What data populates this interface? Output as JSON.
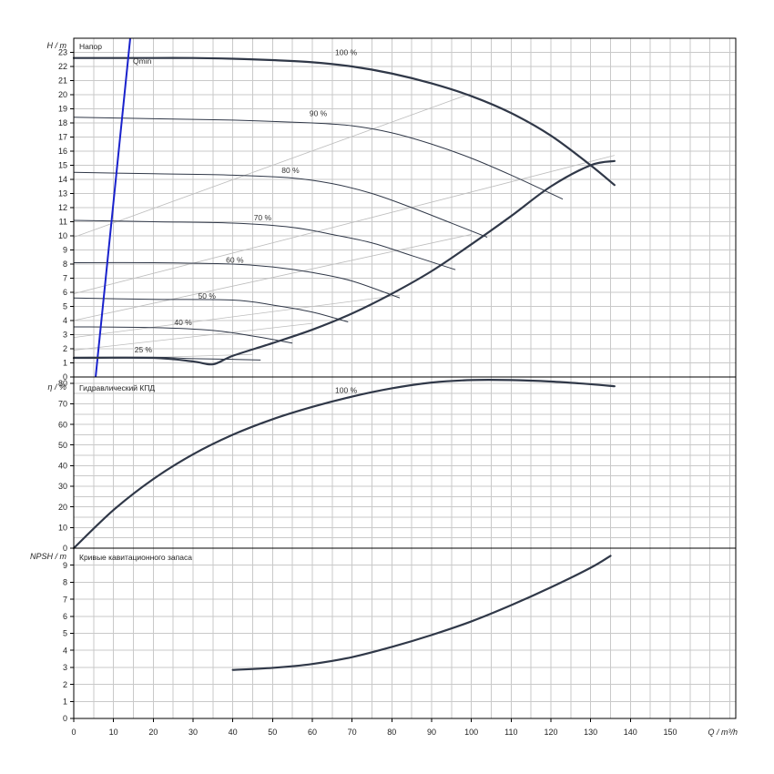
{
  "chart_data": [
    {
      "type": "line",
      "panel": "head",
      "title": "Напор",
      "ylabel": "H / m",
      "ylim": [
        0,
        24
      ],
      "yticks": [
        0,
        1,
        2,
        3,
        4,
        5,
        6,
        7,
        8,
        9,
        10,
        11,
        12,
        13,
        14,
        15,
        16,
        17,
        18,
        19,
        20,
        21,
        22,
        23
      ],
      "grid": true,
      "series": [
        {
          "name": "100 %",
          "style": "bold",
          "x": [
            0,
            10,
            20,
            30,
            40,
            50,
            60,
            70,
            80,
            90,
            100,
            110,
            120,
            130,
            136
          ],
          "y": [
            22.6,
            22.6,
            22.6,
            22.6,
            22.55,
            22.45,
            22.3,
            22.0,
            21.5,
            20.8,
            19.9,
            18.7,
            17.1,
            15.0,
            13.6
          ]
        },
        {
          "name": "90 %",
          "style": "thin",
          "x": [
            0,
            20,
            40,
            60,
            70,
            80,
            90,
            100,
            110,
            123
          ],
          "y": [
            18.4,
            18.3,
            18.2,
            18.0,
            17.8,
            17.3,
            16.5,
            15.5,
            14.3,
            12.6
          ]
        },
        {
          "name": "80 %",
          "style": "thin",
          "x": [
            0,
            20,
            40,
            55,
            65,
            75,
            85,
            95,
            104
          ],
          "y": [
            14.5,
            14.4,
            14.3,
            14.1,
            13.7,
            13.0,
            12.0,
            10.9,
            9.9
          ]
        },
        {
          "name": "70 %",
          "style": "thin",
          "x": [
            0,
            20,
            40,
            55,
            65,
            75,
            85,
            96
          ],
          "y": [
            11.1,
            11.0,
            10.9,
            10.6,
            10.1,
            9.5,
            8.6,
            7.6
          ]
        },
        {
          "name": "60 %",
          "style": "thin",
          "x": [
            0,
            20,
            40,
            50,
            60,
            70,
            82
          ],
          "y": [
            8.1,
            8.1,
            8.0,
            7.8,
            7.4,
            6.8,
            5.6
          ]
        },
        {
          "name": "50 %",
          "style": "thin",
          "x": [
            0,
            20,
            40,
            50,
            60,
            69
          ],
          "y": [
            5.6,
            5.5,
            5.45,
            5.1,
            4.6,
            3.9
          ]
        },
        {
          "name": "40 %",
          "style": "thin",
          "x": [
            0,
            20,
            35,
            45,
            55
          ],
          "y": [
            3.55,
            3.5,
            3.3,
            2.9,
            2.4
          ]
        },
        {
          "name": "25 %",
          "style": "thin",
          "x": [
            0,
            20,
            30,
            40,
            47
          ],
          "y": [
            1.4,
            1.4,
            1.3,
            1.25,
            1.2
          ]
        },
        {
          "name": "Qmin",
          "style": "qmin",
          "x": [
            5.5,
            14.2
          ],
          "y": [
            0,
            24
          ]
        }
      ],
      "min_curve": {
        "x": [
          0,
          20,
          30,
          35,
          40,
          50,
          60,
          70,
          80,
          90,
          100,
          110,
          120,
          130,
          136
        ],
        "y": [
          1.35,
          1.35,
          1.1,
          0.9,
          1.5,
          2.4,
          3.35,
          4.5,
          5.9,
          7.5,
          9.4,
          11.4,
          13.5,
          15.0,
          15.3
        ]
      },
      "iso_lines": [
        {
          "x": [
            0,
            100
          ],
          "y": [
            9.9,
            20.1
          ]
        },
        {
          "x": [
            0,
            136
          ],
          "y": [
            5.9,
            15.7
          ]
        },
        {
          "x": [
            0,
            100
          ],
          "y": [
            4.0,
            10.1
          ]
        },
        {
          "x": [
            0,
            82
          ],
          "y": [
            2.8,
            5.8
          ]
        },
        {
          "x": [
            0,
            60
          ],
          "y": [
            1.9,
            3.8
          ]
        },
        {
          "x": [
            10,
            45
          ],
          "y": [
            1.3,
            1.6
          ]
        }
      ]
    },
    {
      "type": "line",
      "panel": "efficiency",
      "title": "Гидравлический КПД",
      "ylabel": "η / %",
      "ylim": [
        0,
        83
      ],
      "yticks": [
        0,
        10,
        20,
        30,
        40,
        50,
        60,
        70,
        80
      ],
      "grid": true,
      "series": [
        {
          "name": "100 %",
          "style": "bold",
          "x": [
            0,
            10,
            20,
            30,
            40,
            50,
            60,
            70,
            80,
            90,
            100,
            110,
            120,
            130,
            136
          ],
          "y": [
            0,
            18.5,
            33.5,
            45.5,
            55,
            62.5,
            68.5,
            73.5,
            77.5,
            80.3,
            81.5,
            81.5,
            80.8,
            79.5,
            78.5
          ]
        }
      ]
    },
    {
      "type": "line",
      "panel": "npsh",
      "title": "Кривые кавитационного запаса",
      "ylabel": "NPSH / m",
      "ylim": [
        0,
        10
      ],
      "yticks": [
        0,
        1,
        2,
        3,
        4,
        5,
        6,
        7,
        8,
        9
      ],
      "grid": true,
      "series": [
        {
          "name": "",
          "style": "bold",
          "x": [
            40,
            50,
            60,
            70,
            80,
            90,
            100,
            110,
            120,
            130,
            135
          ],
          "y": [
            2.85,
            2.97,
            3.2,
            3.6,
            4.2,
            4.9,
            5.7,
            6.65,
            7.7,
            8.85,
            9.55
          ]
        }
      ]
    }
  ],
  "xaxis": {
    "label": "Q / m³/h",
    "xlim": [
      0,
      166.5
    ],
    "ticks": [
      0,
      10,
      20,
      30,
      40,
      50,
      60,
      70,
      80,
      90,
      100,
      110,
      120,
      130,
      140,
      150
    ]
  },
  "labels": {
    "qmin": "Qmin",
    "head_levels": [
      {
        "text": "100 %",
        "q": 68.5,
        "h": 22.6
      },
      {
        "text": "90 %",
        "q": 61.5,
        "h": 18.3
      },
      {
        "text": "80 %",
        "q": 54.5,
        "h": 14.25
      },
      {
        "text": "70 %",
        "q": 47.5,
        "h": 10.9
      },
      {
        "text": "60 %",
        "q": 40.5,
        "h": 7.9
      },
      {
        "text": "50 %",
        "q": 33.5,
        "h": 5.35
      },
      {
        "text": "40 %",
        "q": 27.5,
        "h": 3.5
      },
      {
        "text": "25 %",
        "q": 17.5,
        "h": 1.55
      }
    ],
    "eff_level": {
      "text": "100 %",
      "q": 68.5,
      "eta": 74
    }
  },
  "colors": {
    "curve": "#303848",
    "qmin": "#1a22cc",
    "grid": "#c9c9c9",
    "iso": "#bdbdbd"
  }
}
